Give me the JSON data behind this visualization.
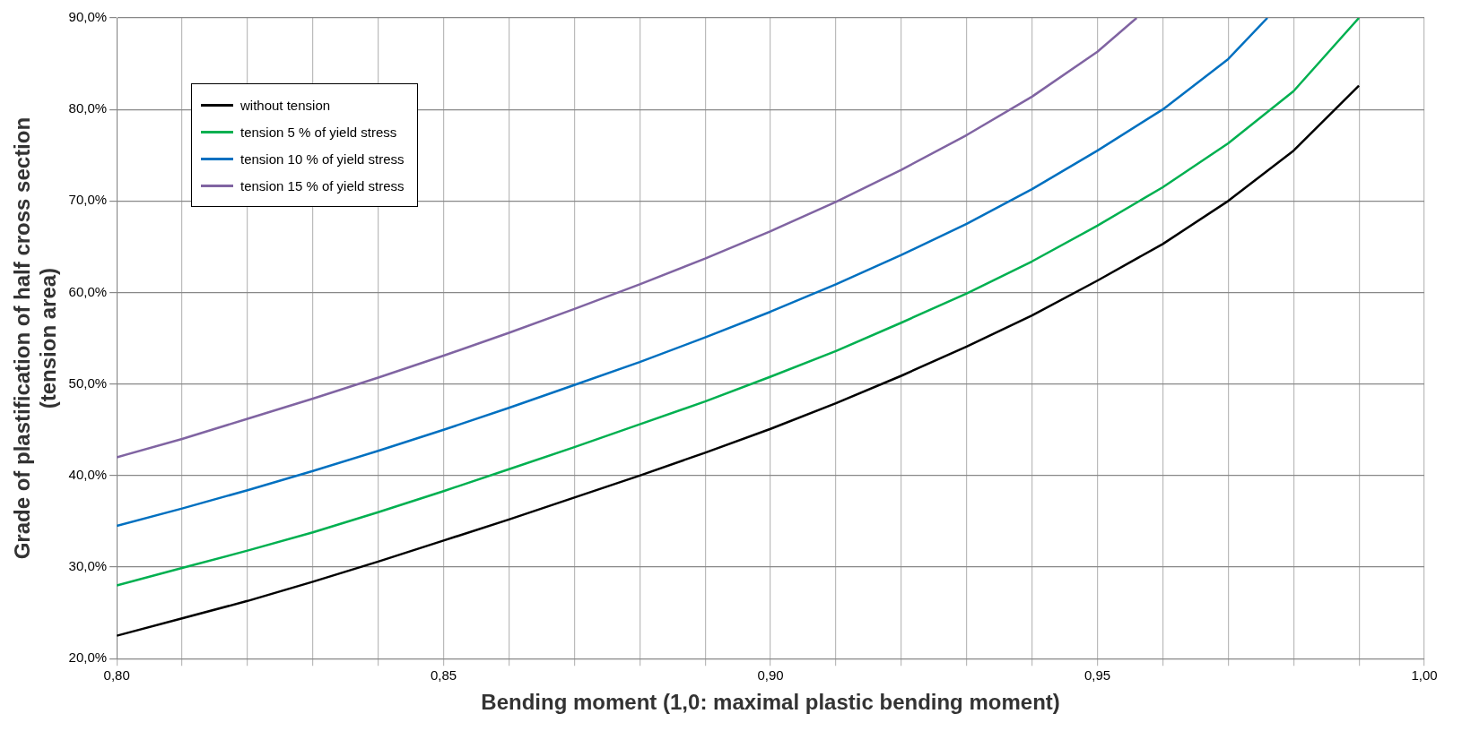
{
  "chart_data": {
    "type": "line",
    "xlabel": "Bending moment (1,0: maximal plastic bending moment)",
    "ylabel": "Grade of plastification of half cross section\n(tension area)",
    "x": [
      0.8,
      0.81,
      0.82,
      0.83,
      0.84,
      0.85,
      0.86,
      0.87,
      0.88,
      0.89,
      0.9,
      0.91,
      0.92,
      0.93,
      0.94,
      0.95,
      0.96,
      0.97,
      0.98,
      0.99
    ],
    "series": [
      {
        "name": "without tension",
        "color": "#000000",
        "values": [
          22.5,
          24.4,
          26.3,
          28.4,
          30.6,
          32.9,
          35.2,
          37.6,
          40.0,
          42.5,
          45.1,
          47.9,
          50.9,
          54.1,
          57.5,
          61.3,
          65.3,
          70.0,
          75.5,
          82.6
        ]
      },
      {
        "name": "tension 5 % of yield stress",
        "color": "#00b050",
        "values": [
          28.0,
          29.9,
          31.8,
          33.8,
          36.0,
          38.3,
          40.7,
          43.1,
          45.6,
          48.1,
          50.8,
          53.6,
          56.7,
          59.9,
          63.4,
          67.3,
          71.5,
          76.3,
          82.0,
          90.0
        ]
      },
      {
        "name": "tension 10 % of yield stress",
        "color": "#0070c0",
        "x": [
          0.8,
          0.81,
          0.82,
          0.83,
          0.84,
          0.85,
          0.86,
          0.87,
          0.88,
          0.89,
          0.9,
          0.91,
          0.92,
          0.93,
          0.94,
          0.95,
          0.96,
          0.97,
          0.976
        ],
        "values": [
          34.5,
          36.4,
          38.4,
          40.5,
          42.7,
          45.0,
          47.4,
          49.9,
          52.4,
          55.1,
          57.9,
          60.9,
          64.1,
          67.5,
          71.3,
          75.5,
          80.0,
          85.5,
          90.0
        ]
      },
      {
        "name": "tension 15 % of yield stress",
        "color": "#8064a2",
        "x": [
          0.8,
          0.81,
          0.82,
          0.83,
          0.84,
          0.85,
          0.86,
          0.87,
          0.88,
          0.89,
          0.9,
          0.91,
          0.92,
          0.93,
          0.94,
          0.95,
          0.956
        ],
        "values": [
          42.0,
          44.0,
          46.2,
          48.4,
          50.7,
          53.1,
          55.6,
          58.2,
          60.9,
          63.7,
          66.7,
          69.9,
          73.4,
          77.2,
          81.4,
          86.3,
          90.0
        ]
      }
    ],
    "xlim": [
      0.8,
      1.0
    ],
    "xticks": [
      {
        "value": 0.8,
        "label": "0,80"
      },
      {
        "value": 0.81,
        "label": null
      },
      {
        "value": 0.82,
        "label": null
      },
      {
        "value": 0.83,
        "label": null
      },
      {
        "value": 0.84,
        "label": null
      },
      {
        "value": 0.85,
        "label": "0,85"
      },
      {
        "value": 0.86,
        "label": null
      },
      {
        "value": 0.87,
        "label": null
      },
      {
        "value": 0.88,
        "label": null
      },
      {
        "value": 0.89,
        "label": null
      },
      {
        "value": 0.9,
        "label": "0,90"
      },
      {
        "value": 0.91,
        "label": null
      },
      {
        "value": 0.92,
        "label": null
      },
      {
        "value": 0.93,
        "label": null
      },
      {
        "value": 0.94,
        "label": null
      },
      {
        "value": 0.95,
        "label": "0,95"
      },
      {
        "value": 0.96,
        "label": null
      },
      {
        "value": 0.97,
        "label": null
      },
      {
        "value": 0.98,
        "label": null
      },
      {
        "value": 0.99,
        "label": null
      },
      {
        "value": 1.0,
        "label": "1,00"
      }
    ],
    "ylim": [
      20,
      90
    ],
    "yticks": [
      {
        "value": 20,
        "label": "20,0%"
      },
      {
        "value": 30,
        "label": "30,0%"
      },
      {
        "value": 40,
        "label": "40,0%"
      },
      {
        "value": 50,
        "label": "50,0%"
      },
      {
        "value": 60,
        "label": "60,0%"
      },
      {
        "value": 70,
        "label": "70,0%"
      },
      {
        "value": 80,
        "label": "80,0%"
      },
      {
        "value": 90,
        "label": "90,0%"
      }
    ],
    "grid": true,
    "legend": "top left",
    "marker": "none",
    "line_style": "solid"
  }
}
